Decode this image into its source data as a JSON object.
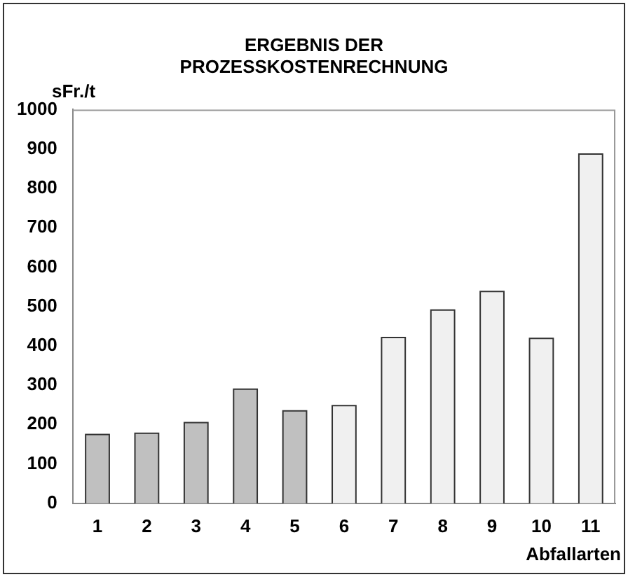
{
  "chart_data": {
    "type": "bar",
    "title": "ERGEBNIS DER PROZESSKOSTENRECHNUNG",
    "xlabel": "Abfallarten",
    "ylabel": "sFr./t",
    "categories": [
      "1",
      "2",
      "3",
      "4",
      "5",
      "6",
      "7",
      "8",
      "9",
      "10",
      "11"
    ],
    "values": [
      175,
      178,
      205,
      290,
      235,
      248,
      421,
      491,
      538,
      419,
      887
    ],
    "colors": [
      "#c0c0c0",
      "#c0c0c0",
      "#c0c0c0",
      "#c0c0c0",
      "#c0c0c0",
      "#f0f0f0",
      "#f0f0f0",
      "#f0f0f0",
      "#f0f0f0",
      "#f0f0f0",
      "#f0f0f0"
    ],
    "ylim": [
      0,
      1000
    ],
    "yticks": [
      0,
      100,
      200,
      300,
      400,
      500,
      600,
      700,
      800,
      900,
      1000
    ],
    "grid": false,
    "legend": false
  }
}
